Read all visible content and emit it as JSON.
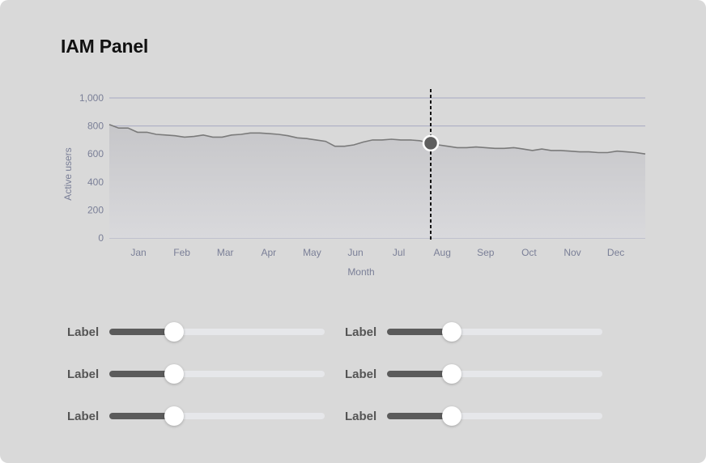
{
  "panel": {
    "title": "IAM Panel"
  },
  "chart_data": {
    "type": "area",
    "title": "",
    "xlabel": "Month",
    "ylabel": "Active users",
    "ylim": [
      0,
      1000
    ],
    "yticks": [
      0,
      200,
      400,
      600,
      800,
      1000
    ],
    "ytick_labels": [
      "0",
      "200",
      "400",
      "600",
      "800",
      "1,000"
    ],
    "x_tick_labels": [
      "Jan",
      "Feb",
      "Mar",
      "Apr",
      "May",
      "Jun",
      "Jul",
      "Aug",
      "Sep",
      "Oct",
      "Nov",
      "Dec"
    ],
    "grid": "horizontal",
    "values": [
      810,
      785,
      785,
      755,
      755,
      740,
      735,
      730,
      720,
      725,
      735,
      720,
      720,
      735,
      740,
      750,
      750,
      745,
      740,
      730,
      715,
      710,
      700,
      690,
      655,
      655,
      665,
      685,
      700,
      700,
      705,
      700,
      700,
      695,
      680,
      665,
      655,
      645,
      645,
      650,
      645,
      640,
      640,
      645,
      635,
      625,
      635,
      625,
      625,
      620,
      615,
      615,
      610,
      610,
      620,
      615,
      610,
      600
    ],
    "highlight": {
      "label": "Aug",
      "value": 700
    },
    "colors": {
      "line": "#7a7a7a",
      "area_top": "#c6c6c9",
      "area_bottom": "#d9d9dc",
      "grid": "#a7a9c2",
      "tick_text": "#7a7f97",
      "marker": "#5e5e5e",
      "crosshair": "#111111"
    }
  },
  "sliders": [
    {
      "label": "Label",
      "value": 0.3
    },
    {
      "label": "Label",
      "value": 0.3
    },
    {
      "label": "Label",
      "value": 0.3
    },
    {
      "label": "Label",
      "value": 0.3
    },
    {
      "label": "Label",
      "value": 0.3
    },
    {
      "label": "Label",
      "value": 0.3
    }
  ]
}
